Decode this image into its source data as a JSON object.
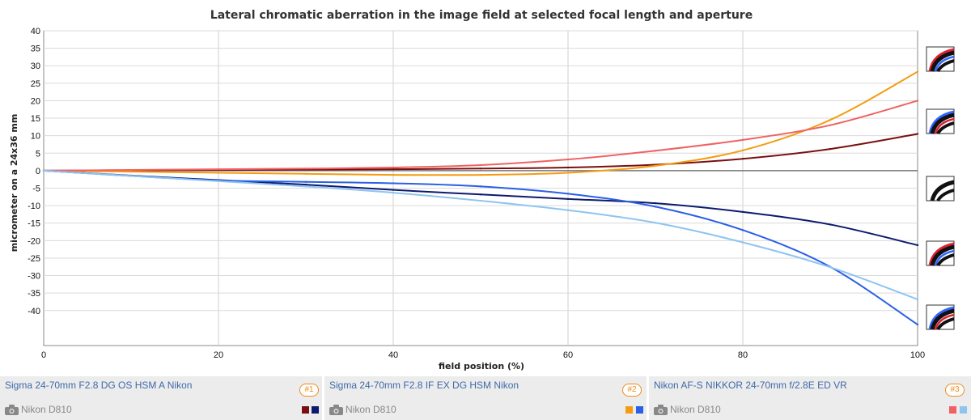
{
  "chart_data": {
    "type": "line",
    "title": "Lateral chromatic aberration in the image field at selected focal length and aperture",
    "xlabel": "field position (%)",
    "ylabel": "micrometer on a 24x36 mm",
    "xlim": [
      0,
      100
    ],
    "ylim": [
      -50,
      40
    ],
    "x_ticks": [
      "0",
      "20",
      "40",
      "60",
      "80",
      "100"
    ],
    "y_ticks": [
      "40",
      "35",
      "30",
      "25",
      "20",
      "15",
      "10",
      "5",
      "0",
      "-5",
      "-10",
      "-15",
      "-20",
      "-25",
      "-30",
      "-35",
      "-40"
    ],
    "grid": true,
    "x": [
      0,
      10,
      20,
      30,
      40,
      50,
      60,
      70,
      80,
      90,
      100
    ],
    "series": [
      {
        "color": "#7a0f0f",
        "values": [
          0,
          0.1,
          0.2,
          0.3,
          0.4,
          0.6,
          0.9,
          1.7,
          3.4,
          6.2,
          10.5
        ]
      },
      {
        "color": "#0d1a6e",
        "values": [
          0,
          -1.4,
          -2.7,
          -4.0,
          -5.5,
          -6.8,
          -8.1,
          -9.3,
          -11.8,
          -15.4,
          -21.3
        ]
      },
      {
        "color": "#f39c12",
        "values": [
          0,
          -0.3,
          -0.6,
          -0.9,
          -1.2,
          -1.2,
          -0.6,
          1.4,
          5.8,
          14.5,
          28.3
        ]
      },
      {
        "color": "#2a5fe6",
        "values": [
          0,
          -1.5,
          -2.8,
          -3.2,
          -3.6,
          -4.5,
          -6.6,
          -10.3,
          -17.0,
          -27.5,
          -44.0
        ]
      },
      {
        "color": "#f06262",
        "values": [
          0,
          0.2,
          0.4,
          0.6,
          0.9,
          1.6,
          3.2,
          5.7,
          8.8,
          13.0,
          20.0
        ]
      },
      {
        "color": "#8ec4f0",
        "values": [
          0,
          -1.5,
          -3.0,
          -4.5,
          -6.3,
          -8.6,
          -11.3,
          -14.9,
          -20.5,
          -27.6,
          -36.8
        ]
      }
    ]
  },
  "legend": [
    {
      "lens": "Sigma 24-70mm F2.8 DG OS HSM A Nikon",
      "badge": "#1",
      "camera": "Nikon D810",
      "colors": [
        "#7a0f0f",
        "#0d1a6e"
      ]
    },
    {
      "lens": "Sigma 24-70mm F2.8 IF EX DG HSM Nikon",
      "badge": "#2",
      "camera": "Nikon D810",
      "colors": [
        "#f39c12",
        "#2a5fe6"
      ]
    },
    {
      "lens": "Nikon AF-S NIKKOR 24-70mm f/2.8E ED VR",
      "badge": "#3",
      "camera": "Nikon D810",
      "colors": [
        "#f06262",
        "#8ec4f0"
      ]
    }
  ],
  "icons": [
    "camera-icon",
    "ca-fringe-icon"
  ]
}
